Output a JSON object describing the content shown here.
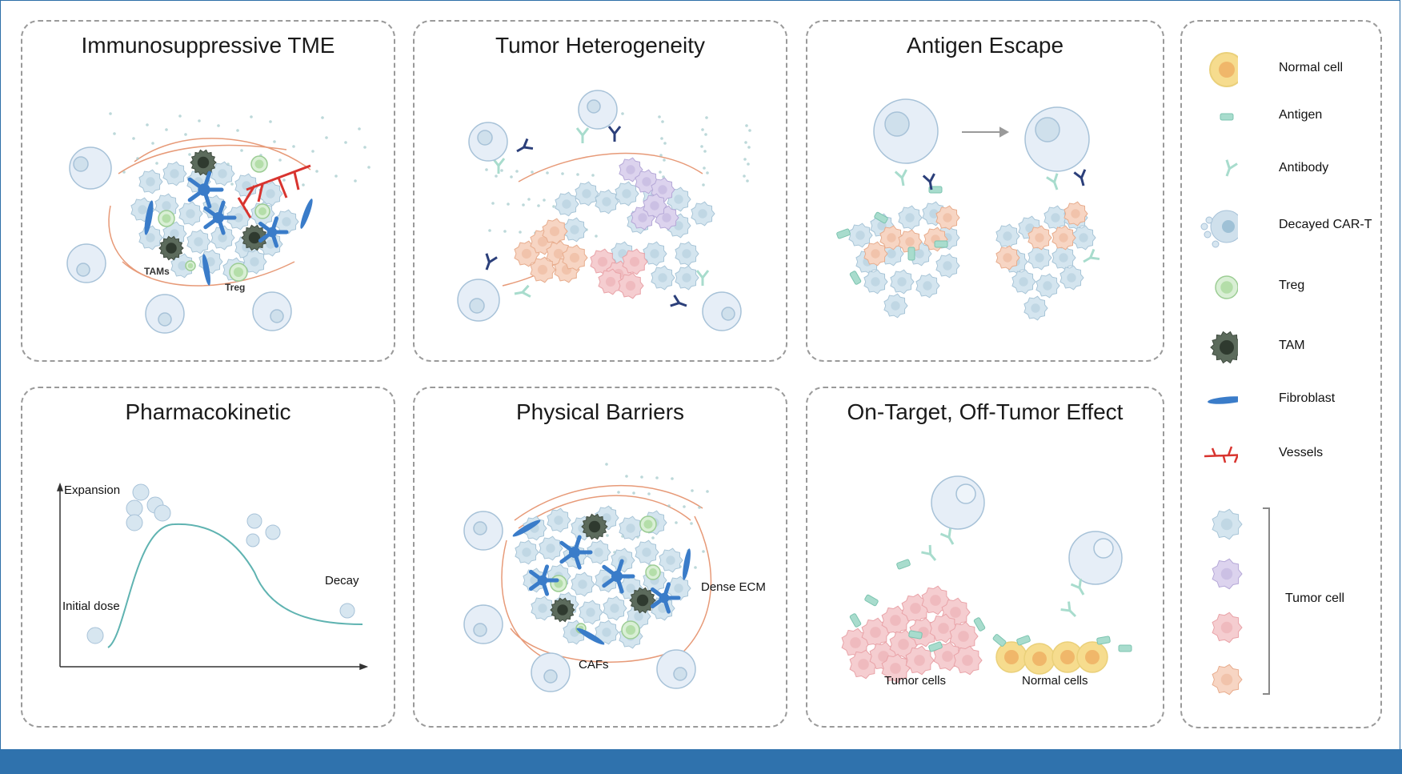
{
  "panels": {
    "tme": {
      "title": "Immunosuppressive TME",
      "labels": {
        "tams": "TAMs",
        "treg": "Treg"
      }
    },
    "heterogeneity": {
      "title": "Tumor Heterogeneity"
    },
    "antigen_escape": {
      "title": "Antigen Escape"
    },
    "pharmacokinetic": {
      "title": "Pharmacokinetic",
      "labels": {
        "expansion": "Expansion",
        "initial_dose": "Initial dose",
        "decay": "Decay"
      }
    },
    "physical_barriers": {
      "title": "Physical Barriers",
      "labels": {
        "dense_ecm": "Dense ECM",
        "cafs": "CAFs"
      }
    },
    "off_tumor": {
      "title": "On-Target, Off-Tumor Effect",
      "labels": {
        "tumor_cells": "Tumor cells",
        "normal_cells": "Normal cells"
      }
    }
  },
  "legend": {
    "items": [
      {
        "label": "Normal cell",
        "icon": "normal-cell-icon"
      },
      {
        "label": "Antigen",
        "icon": "antigen-icon"
      },
      {
        "label": "Antibody",
        "icon": "antibody-icon"
      },
      {
        "label": "Decayed CAR-T",
        "icon": "decayed-car-t-icon"
      },
      {
        "label": "Treg",
        "icon": "treg-icon"
      },
      {
        "label": "TAM",
        "icon": "tam-icon"
      },
      {
        "label": "Fibroblast",
        "icon": "fibroblast-icon"
      },
      {
        "label": "Vessels",
        "icon": "vessels-icon"
      }
    ],
    "tumor_cell_label": "Tumor cell"
  },
  "colors": {
    "border": "#9a9a9a",
    "bar": "#2f72ad",
    "tumor_blue": "#c9dde8",
    "tumor_purple": "#d8d0ea",
    "tumor_red": "#f3c6c8",
    "tumor_orange": "#f5cdb8",
    "normal_cell": "#f6dc8e",
    "treg": "#c4e6bf",
    "tam": "#5c6b5c",
    "fibroblast": "#3a7cc9",
    "vessel": "#d8342f",
    "antigen": "#a8dccd",
    "antibody": "#2b3f7a",
    "curve": "#5fb3b1"
  }
}
